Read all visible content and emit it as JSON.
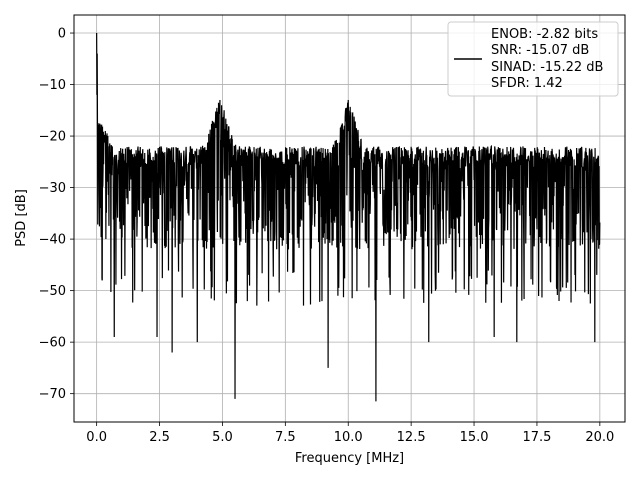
{
  "chart_data": {
    "type": "line",
    "xlabel": "Frequency [MHz]",
    "ylabel": "PSD [dB]",
    "xlim": [
      -0.9,
      21.0
    ],
    "ylim": [
      -75.5,
      3.5
    ],
    "xticks": [
      0.0,
      2.5,
      5.0,
      7.5,
      10.0,
      12.5,
      15.0,
      17.5,
      20.0
    ],
    "xtick_labels": [
      "0.0",
      "2.5",
      "5.0",
      "7.5",
      "10.0",
      "12.5",
      "15.0",
      "17.5",
      "20.0"
    ],
    "yticks": [
      0,
      -10,
      -20,
      -30,
      -40,
      -50,
      -60,
      -70
    ],
    "ytick_labels": [
      "0",
      "−10",
      "−20",
      "−30",
      "−40",
      "−50",
      "−60",
      "−70"
    ],
    "grid": true,
    "legend_position": "top-right",
    "line_color": "#000000",
    "series": [
      {
        "name": "ENOB: -2.82 bits\nSNR: -15.07 dB\nSINAD: -15.22 dB\nSFDR: 1.42",
        "x_range": [
          0.0,
          20.0
        ],
        "features": {
          "dc_peak": {
            "x": 0.0,
            "y": 0.0
          },
          "noise_band_upper": -22,
          "noise_band_lower": -38,
          "spur_1": {
            "x": 4.9,
            "y": -13
          },
          "spur_2": {
            "x": 10.0,
            "y": -13
          },
          "deep_dips": [
            {
              "x": 0.7,
              "y": -59
            },
            {
              "x": 2.4,
              "y": -59
            },
            {
              "x": 3.0,
              "y": -62
            },
            {
              "x": 4.0,
              "y": -60
            },
            {
              "x": 5.5,
              "y": -71
            },
            {
              "x": 9.2,
              "y": -65
            },
            {
              "x": 11.1,
              "y": -71.5
            },
            {
              "x": 13.2,
              "y": -60
            },
            {
              "x": 15.8,
              "y": -59
            },
            {
              "x": 16.7,
              "y": -60
            },
            {
              "x": 19.8,
              "y": -60
            }
          ]
        }
      }
    ]
  },
  "legend": {
    "lines": [
      "ENOB: -2.82 bits",
      "SNR: -15.07 dB",
      "SINAD: -15.22 dB",
      "SFDR: 1.42"
    ]
  }
}
